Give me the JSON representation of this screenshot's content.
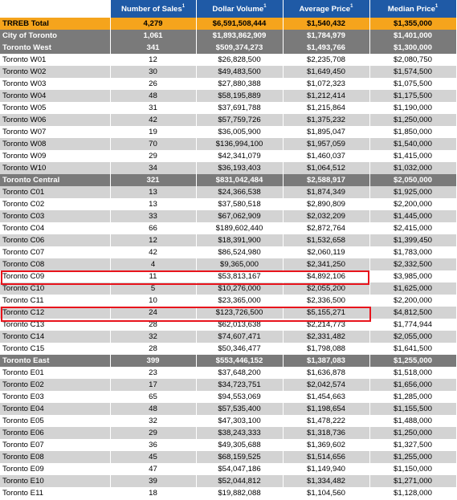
{
  "header": {
    "columns": [
      {
        "label": "",
        "sup": ""
      },
      {
        "label": "Number of Sales",
        "sup": "1"
      },
      {
        "label": "Dollar Volume",
        "sup": "1"
      },
      {
        "label": "Average Price",
        "sup": "1"
      },
      {
        "label": "Median Price",
        "sup": "1"
      }
    ]
  },
  "rows": [
    {
      "type": "total",
      "name": "TRREB Total",
      "sales": "4,279",
      "volume": "$6,591,508,444",
      "avg": "$1,540,432",
      "median": "$1,355,000"
    },
    {
      "type": "region",
      "name": "City of Toronto",
      "sales": "1,061",
      "volume": "$1,893,862,909",
      "avg": "$1,784,979",
      "median": "$1,401,000"
    },
    {
      "type": "region",
      "name": "Toronto West",
      "sales": "341",
      "volume": "$509,374,273",
      "avg": "$1,493,766",
      "median": "$1,300,000"
    },
    {
      "type": "white",
      "name": "Toronto W01",
      "sales": "12",
      "volume": "$26,828,500",
      "avg": "$2,235,708",
      "median": "$2,080,750"
    },
    {
      "type": "grey",
      "name": "Toronto W02",
      "sales": "30",
      "volume": "$49,483,500",
      "avg": "$1,649,450",
      "median": "$1,574,500"
    },
    {
      "type": "white",
      "name": "Toronto W03",
      "sales": "26",
      "volume": "$27,880,388",
      "avg": "$1,072,323",
      "median": "$1,075,500"
    },
    {
      "type": "grey",
      "name": "Toronto W04",
      "sales": "48",
      "volume": "$58,195,889",
      "avg": "$1,212,414",
      "median": "$1,175,500"
    },
    {
      "type": "white",
      "name": "Toronto W05",
      "sales": "31",
      "volume": "$37,691,788",
      "avg": "$1,215,864",
      "median": "$1,190,000"
    },
    {
      "type": "grey",
      "name": "Toronto W06",
      "sales": "42",
      "volume": "$57,759,726",
      "avg": "$1,375,232",
      "median": "$1,250,000"
    },
    {
      "type": "white",
      "name": "Toronto W07",
      "sales": "19",
      "volume": "$36,005,900",
      "avg": "$1,895,047",
      "median": "$1,850,000"
    },
    {
      "type": "grey",
      "name": "Toronto W08",
      "sales": "70",
      "volume": "$136,994,100",
      "avg": "$1,957,059",
      "median": "$1,540,000"
    },
    {
      "type": "white",
      "name": "Toronto W09",
      "sales": "29",
      "volume": "$42,341,079",
      "avg": "$1,460,037",
      "median": "$1,415,000"
    },
    {
      "type": "grey",
      "name": "Toronto W10",
      "sales": "34",
      "volume": "$36,193,403",
      "avg": "$1,064,512",
      "median": "$1,032,000"
    },
    {
      "type": "region",
      "name": "Toronto Central",
      "sales": "321",
      "volume": "$831,042,484",
      "avg": "$2,588,917",
      "median": "$2,050,000"
    },
    {
      "type": "grey",
      "name": "Toronto C01",
      "sales": "13",
      "volume": "$24,366,538",
      "avg": "$1,874,349",
      "median": "$1,925,000"
    },
    {
      "type": "white",
      "name": "Toronto C02",
      "sales": "13",
      "volume": "$37,580,518",
      "avg": "$2,890,809",
      "median": "$2,200,000"
    },
    {
      "type": "grey",
      "name": "Toronto C03",
      "sales": "33",
      "volume": "$67,062,909",
      "avg": "$2,032,209",
      "median": "$1,445,000"
    },
    {
      "type": "white",
      "name": "Toronto C04",
      "sales": "66",
      "volume": "$189,602,440",
      "avg": "$2,872,764",
      "median": "$2,415,000"
    },
    {
      "type": "grey",
      "name": "Toronto C06",
      "sales": "12",
      "volume": "$18,391,900",
      "avg": "$1,532,658",
      "median": "$1,399,450"
    },
    {
      "type": "white",
      "name": "Toronto C07",
      "sales": "42",
      "volume": "$86,524,980",
      "avg": "$2,060,119",
      "median": "$1,783,000"
    },
    {
      "type": "grey",
      "name": "Toronto C08",
      "sales": "4",
      "volume": "$9,365,000",
      "avg": "$2,341,250",
      "median": "$2,332,500"
    },
    {
      "type": "white",
      "name": "Toronto C09",
      "sales": "11",
      "volume": "$53,813,167",
      "avg": "$4,892,106",
      "median": "$3,985,000"
    },
    {
      "type": "grey",
      "name": "Toronto C10",
      "sales": "5",
      "volume": "$10,276,000",
      "avg": "$2,055,200",
      "median": "$1,625,000"
    },
    {
      "type": "white",
      "name": "Toronto C11",
      "sales": "10",
      "volume": "$23,365,000",
      "avg": "$2,336,500",
      "median": "$2,200,000"
    },
    {
      "type": "grey",
      "name": "Toronto C12",
      "sales": "24",
      "volume": "$123,726,500",
      "avg": "$5,155,271",
      "median": "$4,812,500"
    },
    {
      "type": "white",
      "name": "Toronto C13",
      "sales": "28",
      "volume": "$62,013,638",
      "avg": "$2,214,773",
      "median": "$1,774,944"
    },
    {
      "type": "grey",
      "name": "Toronto C14",
      "sales": "32",
      "volume": "$74,607,471",
      "avg": "$2,331,482",
      "median": "$2,055,000"
    },
    {
      "type": "white",
      "name": "Toronto C15",
      "sales": "28",
      "volume": "$50,346,477",
      "avg": "$1,798,088",
      "median": "$1,641,500"
    },
    {
      "type": "region",
      "name": "Toronto East",
      "sales": "399",
      "volume": "$553,446,152",
      "avg": "$1,387,083",
      "median": "$1,255,000"
    },
    {
      "type": "white",
      "name": "Toronto E01",
      "sales": "23",
      "volume": "$37,648,200",
      "avg": "$1,636,878",
      "median": "$1,518,000"
    },
    {
      "type": "grey",
      "name": "Toronto E02",
      "sales": "17",
      "volume": "$34,723,751",
      "avg": "$2,042,574",
      "median": "$1,656,000"
    },
    {
      "type": "white",
      "name": "Toronto E03",
      "sales": "65",
      "volume": "$94,553,069",
      "avg": "$1,454,663",
      "median": "$1,285,000"
    },
    {
      "type": "grey",
      "name": "Toronto E04",
      "sales": "48",
      "volume": "$57,535,400",
      "avg": "$1,198,654",
      "median": "$1,155,500"
    },
    {
      "type": "white",
      "name": "Toronto E05",
      "sales": "32",
      "volume": "$47,303,100",
      "avg": "$1,478,222",
      "median": "$1,488,000"
    },
    {
      "type": "grey",
      "name": "Toronto E06",
      "sales": "29",
      "volume": "$38,243,333",
      "avg": "$1,318,736",
      "median": "$1,250,000"
    },
    {
      "type": "white",
      "name": "Toronto E07",
      "sales": "36",
      "volume": "$49,305,688",
      "avg": "$1,369,602",
      "median": "$1,327,500"
    },
    {
      "type": "grey",
      "name": "Toronto E08",
      "sales": "45",
      "volume": "$68,159,525",
      "avg": "$1,514,656",
      "median": "$1,255,000"
    },
    {
      "type": "white",
      "name": "Toronto E09",
      "sales": "47",
      "volume": "$54,047,186",
      "avg": "$1,149,940",
      "median": "$1,150,000"
    },
    {
      "type": "grey",
      "name": "Toronto E10",
      "sales": "39",
      "volume": "$52,044,812",
      "avg": "$1,334,482",
      "median": "$1,271,000"
    },
    {
      "type": "white",
      "name": "Toronto E11",
      "sales": "18",
      "volume": "$19,882,088",
      "avg": "$1,104,560",
      "median": "$1,128,000"
    }
  ],
  "highlight": {
    "color": "#e8141c",
    "rows": [
      "Toronto C09",
      "Toronto C12"
    ]
  },
  "colors": {
    "header": "#1f5aa6",
    "total": "#f5a41c",
    "region": "#7a7a7a",
    "grey_row": "#d3d3d3"
  }
}
